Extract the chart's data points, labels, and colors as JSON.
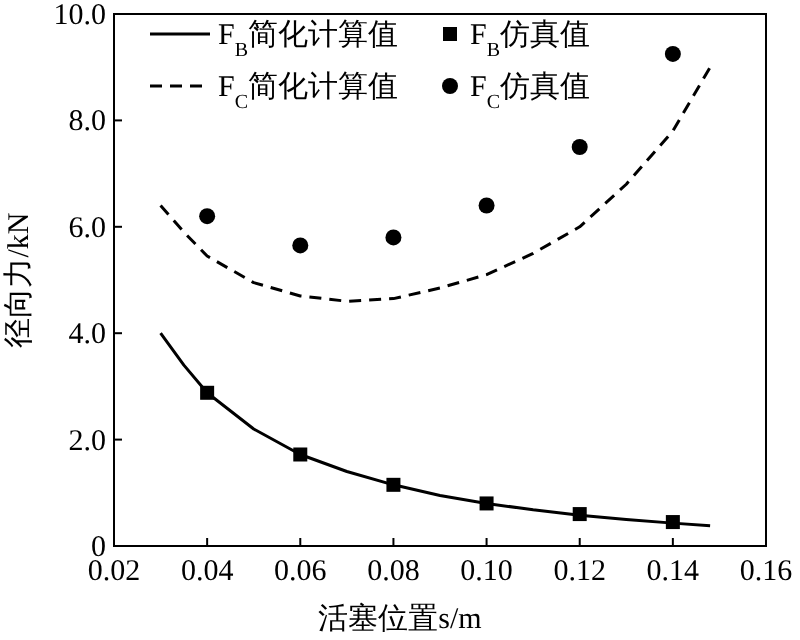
{
  "chart_data": {
    "type": "line",
    "xlabel": "活塞位置s/m",
    "ylabel": "径向力/kN",
    "xlim": [
      0.02,
      0.16
    ],
    "ylim": [
      0,
      10
    ],
    "xticks": [
      0.02,
      0.04,
      0.06,
      0.08,
      {
        "value": 0.1,
        "label": "0.10"
      },
      0.12,
      0.14,
      0.16
    ],
    "yticks": [
      0,
      {
        "value": 2,
        "label": "2.0"
      },
      {
        "value": 4,
        "label": "4.0"
      },
      {
        "value": 6,
        "label": "6.0"
      },
      {
        "value": 8,
        "label": "8.0"
      },
      {
        "value": 10,
        "label": "10.0"
      }
    ],
    "legend": "top",
    "series": [
      {
        "name": "F$_{B}$简化计算值",
        "type": "line",
        "line_style": "solid",
        "marker": "none",
        "color": "#000000",
        "x": [
          0.03,
          0.035,
          0.04,
          0.05,
          0.06,
          0.07,
          0.08,
          0.09,
          0.1,
          0.11,
          0.12,
          0.13,
          0.14,
          0.148
        ],
        "values": [
          4.0,
          3.4,
          2.88,
          2.2,
          1.72,
          1.4,
          1.15,
          0.95,
          0.8,
          0.68,
          0.58,
          0.5,
          0.43,
          0.38
        ]
      },
      {
        "name": "F$_{B}$仿真值",
        "type": "scatter",
        "marker": "square",
        "color": "#000000",
        "x": [
          0.04,
          0.06,
          0.08,
          0.1,
          0.12,
          0.14
        ],
        "values": [
          2.88,
          1.72,
          1.15,
          0.8,
          0.6,
          0.45
        ]
      },
      {
        "name": "F$_{C}$简化计算值",
        "type": "line",
        "line_style": "dashed",
        "marker": "none",
        "color": "#000000",
        "x": [
          0.03,
          0.035,
          0.04,
          0.05,
          0.06,
          0.07,
          0.08,
          0.09,
          0.1,
          0.11,
          0.12,
          0.13,
          0.14,
          0.148
        ],
        "values": [
          6.4,
          5.9,
          5.45,
          4.95,
          4.7,
          4.6,
          4.65,
          4.85,
          5.1,
          5.5,
          6.0,
          6.8,
          7.8,
          9.0
        ]
      },
      {
        "name": "F$_{C}$仿真值",
        "type": "scatter",
        "marker": "circle",
        "color": "#000000",
        "x": [
          0.04,
          0.06,
          0.08,
          0.1,
          0.12,
          0.14
        ],
        "values": [
          6.2,
          5.65,
          5.8,
          6.4,
          7.5,
          9.25
        ]
      }
    ]
  }
}
